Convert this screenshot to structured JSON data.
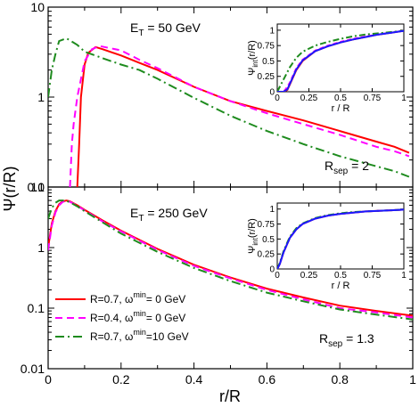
{
  "chart_data": {
    "type": "line",
    "ylabel": "Ψ(r/R)",
    "xlabel": "r/R",
    "xlim": [
      0,
      1
    ],
    "xticks": [
      "0",
      "0.2",
      "0.4",
      "0.6",
      "0.8",
      "1"
    ],
    "panels": [
      {
        "annotation_et": "E_T = 50 GeV",
        "annotation_rsep": "R_sep = 2",
        "ylim": [
          0.1,
          10
        ],
        "yscale": "log",
        "yticks": [
          "0.1",
          "1",
          "10"
        ],
        "series": [
          {
            "key": "r07",
            "color": "#ff0000",
            "dash": "solid",
            "x": [
              0.08,
              0.085,
              0.09,
              0.1,
              0.11,
              0.13,
              0.15,
              0.2,
              0.25,
              0.3,
              0.4,
              0.5,
              0.6,
              0.7,
              0.8,
              0.9,
              0.95,
              0.99
            ],
            "y": [
              0.1,
              0.3,
              1.0,
              2.3,
              3.1,
              3.6,
              3.4,
              2.9,
              2.4,
              2.0,
              1.3,
              0.9,
              0.7,
              0.55,
              0.42,
              0.32,
              0.28,
              0.24
            ]
          },
          {
            "key": "r04",
            "color": "#ff00ff",
            "dash": "8,5",
            "x": [
              0.06,
              0.065,
              0.07,
              0.08,
              0.1,
              0.12,
              0.14,
              0.2,
              0.25,
              0.3,
              0.4,
              0.5,
              0.6,
              0.7,
              0.8,
              0.9,
              0.95,
              0.99
            ],
            "y": [
              0.1,
              0.3,
              0.5,
              1.0,
              2.5,
              3.4,
              3.7,
              3.3,
              2.6,
              2.1,
              1.3,
              0.9,
              0.66,
              0.5,
              0.38,
              0.28,
              0.25,
              0.22
            ]
          },
          {
            "key": "r07w",
            "color": "#1e8b1e",
            "dash": "10,4,2,4",
            "x": [
              0.0,
              0.01,
              0.02,
              0.03,
              0.05,
              0.08,
              0.1,
              0.15,
              0.2,
              0.25,
              0.3,
              0.4,
              0.5,
              0.6,
              0.7,
              0.8,
              0.9,
              0.95,
              0.99
            ],
            "y": [
              1.0,
              2.0,
              3.0,
              4.2,
              4.5,
              3.8,
              3.2,
              2.7,
              2.3,
              2.0,
              1.6,
              0.98,
              0.62,
              0.42,
              0.3,
              0.22,
              0.17,
              0.15,
              0.13
            ]
          }
        ],
        "inset": {
          "xlabel": "r / R",
          "ylabel_main": "Ψ",
          "ylabel_sub": "int",
          "ylabel_rest": "(r/R)",
          "xlim": [
            0,
            1
          ],
          "ylim": [
            0,
            1.1
          ],
          "xticks": [
            "0",
            "0.25",
            "0.5",
            "0.75",
            "1"
          ],
          "yticks": [
            "0",
            "0.25",
            "0.5",
            "0.75",
            "1"
          ],
          "series": [
            {
              "key": "r07",
              "color": "#ff0000",
              "dash": "solid",
              "x": [
                0.0,
                0.05,
                0.08,
                0.1,
                0.15,
                0.2,
                0.3,
                0.4,
                0.5,
                0.6,
                0.7,
                0.8,
                0.9,
                1.0
              ],
              "y": [
                0.0,
                0.0,
                0.03,
                0.12,
                0.35,
                0.5,
                0.66,
                0.74,
                0.8,
                0.85,
                0.89,
                0.93,
                0.96,
                0.99
              ]
            },
            {
              "key": "r04",
              "color": "#ff00ff",
              "dash": "5,3",
              "x": [
                0.0,
                0.05,
                0.07,
                0.1,
                0.15,
                0.2,
                0.3,
                0.4,
                0.5,
                0.6,
                0.7,
                0.8,
                0.9,
                1.0
              ],
              "y": [
                0.0,
                0.0,
                0.05,
                0.15,
                0.38,
                0.52,
                0.67,
                0.75,
                0.81,
                0.86,
                0.9,
                0.93,
                0.96,
                0.99
              ]
            },
            {
              "key": "r07w",
              "color": "#1e8b1e",
              "dash": "7,3,2,3",
              "x": [
                0.0,
                0.02,
                0.05,
                0.1,
                0.15,
                0.2,
                0.3,
                0.4,
                0.5,
                0.6,
                0.7,
                0.8,
                0.9,
                1.0
              ],
              "y": [
                0.0,
                0.08,
                0.2,
                0.4,
                0.55,
                0.65,
                0.75,
                0.81,
                0.86,
                0.9,
                0.93,
                0.95,
                0.97,
                0.99
              ]
            },
            {
              "key": "r07b",
              "color": "#1a1aff",
              "dash": "solid",
              "x": [
                0.0,
                0.05,
                0.08,
                0.1,
                0.15,
                0.2,
                0.3,
                0.4,
                0.5,
                0.6,
                0.7,
                0.8,
                0.9,
                1.0
              ],
              "y": [
                0.0,
                0.0,
                0.04,
                0.13,
                0.36,
                0.51,
                0.66,
                0.74,
                0.8,
                0.85,
                0.89,
                0.93,
                0.96,
                0.99
              ]
            }
          ]
        }
      },
      {
        "annotation_et": "E_T = 250 GeV",
        "annotation_rsep": "R_sep = 1.3",
        "ylim": [
          0.01,
          10
        ],
        "yscale": "log",
        "yticks": [
          "0.01",
          "0.1",
          "1",
          "10"
        ],
        "series": [
          {
            "key": "r07",
            "color": "#ff0000",
            "dash": "solid",
            "x": [
              0.0,
              0.01,
              0.02,
              0.03,
              0.04,
              0.05,
              0.06,
              0.08,
              0.1,
              0.15,
              0.2,
              0.3,
              0.4,
              0.5,
              0.6,
              0.7,
              0.8,
              0.9,
              1.0
            ],
            "y": [
              1.0,
              2.5,
              4.0,
              5.2,
              5.8,
              6.0,
              5.8,
              5.0,
              4.2,
              2.8,
              1.9,
              0.95,
              0.52,
              0.32,
              0.21,
              0.15,
              0.11,
              0.09,
              0.075
            ]
          },
          {
            "key": "r04",
            "color": "#ff00ff",
            "dash": "8,5",
            "x": [
              0.0,
              0.01,
              0.02,
              0.03,
              0.04,
              0.05,
              0.06,
              0.08,
              0.1,
              0.15,
              0.2,
              0.3,
              0.4,
              0.5,
              0.6,
              0.7,
              0.8,
              0.9,
              1.0
            ],
            "y": [
              0.9,
              2.3,
              3.8,
              5.0,
              5.7,
              5.9,
              5.7,
              4.9,
              4.1,
              2.7,
              1.85,
              0.92,
              0.5,
              0.31,
              0.2,
              0.14,
              0.1,
              0.085,
              0.07
            ]
          },
          {
            "key": "r07w",
            "color": "#1e8b1e",
            "dash": "10,4,2,4",
            "x": [
              0.0,
              0.01,
              0.02,
              0.03,
              0.04,
              0.05,
              0.06,
              0.08,
              0.1,
              0.15,
              0.2,
              0.3,
              0.4,
              0.5,
              0.6,
              0.7,
              0.8,
              0.9,
              1.0
            ],
            "y": [
              3.0,
              4.5,
              5.5,
              6.0,
              6.0,
              5.9,
              5.6,
              4.8,
              4.0,
              2.6,
              1.7,
              0.85,
              0.46,
              0.28,
              0.18,
              0.13,
              0.095,
              0.078,
              0.065
            ]
          }
        ],
        "inset": {
          "xlabel": "r / R",
          "ylabel_main": "Ψ",
          "ylabel_sub": "int",
          "ylabel_rest": "(r/R)",
          "xlim": [
            0,
            1
          ],
          "ylim": [
            0,
            1.1
          ],
          "xticks": [
            "0",
            "0.25",
            "0.5",
            "0.75",
            "1"
          ],
          "yticks": [
            "0",
            "0.25",
            "0.5",
            "0.75",
            "1"
          ],
          "series": [
            {
              "key": "r07",
              "color": "#ff0000",
              "dash": "solid",
              "x": [
                0.0,
                0.02,
                0.05,
                0.1,
                0.15,
                0.2,
                0.3,
                0.4,
                0.5,
                0.6,
                0.7,
                0.8,
                0.9,
                1.0
              ],
              "y": [
                0.0,
                0.08,
                0.28,
                0.52,
                0.66,
                0.75,
                0.84,
                0.89,
                0.92,
                0.94,
                0.96,
                0.97,
                0.98,
                0.99
              ]
            },
            {
              "key": "r04",
              "color": "#ff00ff",
              "dash": "5,3",
              "x": [
                0.0,
                0.02,
                0.05,
                0.1,
                0.15,
                0.2,
                0.3,
                0.4,
                0.5,
                0.6,
                0.7,
                0.8,
                0.9,
                1.0
              ],
              "y": [
                0.0,
                0.08,
                0.28,
                0.52,
                0.66,
                0.75,
                0.84,
                0.89,
                0.92,
                0.94,
                0.96,
                0.97,
                0.98,
                0.99
              ]
            },
            {
              "key": "r07w",
              "color": "#1e8b1e",
              "dash": "7,3,2,3",
              "x": [
                0.0,
                0.02,
                0.05,
                0.1,
                0.15,
                0.2,
                0.3,
                0.4,
                0.5,
                0.6,
                0.7,
                0.8,
                0.9,
                1.0
              ],
              "y": [
                0.0,
                0.1,
                0.3,
                0.54,
                0.68,
                0.76,
                0.85,
                0.9,
                0.93,
                0.95,
                0.96,
                0.97,
                0.98,
                0.99
              ]
            },
            {
              "key": "r07b",
              "color": "#1a1aff",
              "dash": "solid",
              "x": [
                0.0,
                0.02,
                0.05,
                0.1,
                0.15,
                0.2,
                0.3,
                0.4,
                0.5,
                0.6,
                0.7,
                0.8,
                0.9,
                1.0
              ],
              "y": [
                0.0,
                0.08,
                0.28,
                0.52,
                0.66,
                0.75,
                0.84,
                0.89,
                0.92,
                0.94,
                0.96,
                0.97,
                0.98,
                0.99
              ]
            }
          ]
        }
      }
    ],
    "legend": {
      "placement": "lower-left of bottom panel",
      "entries": [
        {
          "key": "r07",
          "color": "#ff0000",
          "dash": "solid",
          "text_a": "R=0.7, ω",
          "sup": "min",
          "text_b": "= 0 GeV"
        },
        {
          "key": "r04",
          "color": "#ff00ff",
          "dash": "8,5",
          "text_a": "R=0.4, ω",
          "sup": "min",
          "text_b": "= 0 GeV"
        },
        {
          "key": "r07w",
          "color": "#1e8b1e",
          "dash": "10,4,2,4",
          "text_a": "R=0.7, ω",
          "sup": "min",
          "text_b": "=10 GeV"
        }
      ]
    }
  }
}
